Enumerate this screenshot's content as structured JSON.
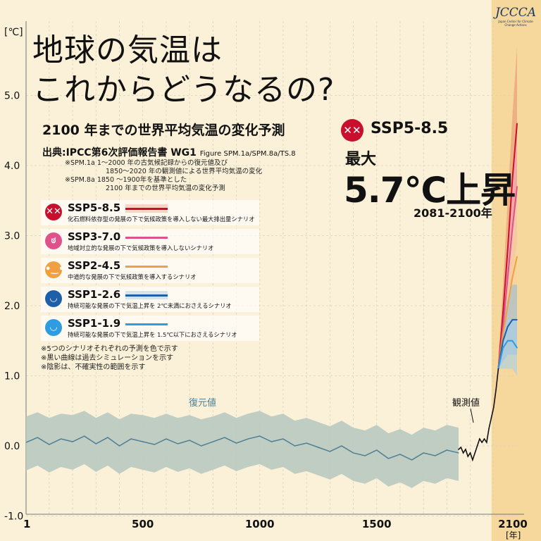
{
  "title_line1": "地球の気温は",
  "title_line2": "これからどうなるの?",
  "subtitle": "2100 年までの世界平均気温の変化予測",
  "source_label": "出典:IPCC第6次評価報告書 WG1",
  "source_figure": "Figure SPM.1a/SPM.8a/TS.8",
  "notes": [
    "※SPM.1a  1〜2000 年の古気候記録からの復元値及び",
    "1850〜2020 年の観測値による世界平均気温の変化",
    "※SPM.8a  1850 〜1900年を基準とした",
    "2100 年までの世界平均気温の変化予測"
  ],
  "legend": [
    {
      "name": "SSP5-8.5",
      "desc": "化石燃料依存型の発展の下で気候政策を導入しない最大排出量シナリオ",
      "face": "✕✕",
      "color": "#c8102e",
      "band": "#e8906e"
    },
    {
      "name": "SSP3-7.0",
      "desc": "地域対立的な発展の下で気候政策を導入しないシナリオ",
      "face": "ಠ",
      "color": "#e0508a",
      "band": "#f4a6c0"
    },
    {
      "name": "SSP2-4.5",
      "desc": "中道的な発展の下で気候政策を導入するシナリオ",
      "face": "•‿•",
      "color": "#f0a040",
      "band": "#f8d29a"
    },
    {
      "name": "SSP1-2.6",
      "desc": "持続可能な発展の下で気温上昇を 2℃未満におさえるシナリオ",
      "face": "◡",
      "color": "#1f5fa8",
      "band": "#8fb8df"
    },
    {
      "name": "SSP1-1.9",
      "desc": "持続可能な発展の下で気温上昇を 1.5℃以下におさえるシナリオ",
      "face": "◡",
      "color": "#2f9be0",
      "band": "#9fd0f0"
    }
  ],
  "footnotes": [
    "※5つのシナリオそれぞれの予測を色で示す",
    "※黒い曲線は過去シミュレーションを示す",
    "※陰影は、不確実性の範囲を示す"
  ],
  "highlight": {
    "scenario": "SSP5-8.5",
    "max_label": "最大",
    "value": "5.7℃上昇",
    "period": "2081-2100年"
  },
  "logo": {
    "name": "JCCCA",
    "sub": "Japan Center for Climate Change Actions"
  },
  "colors": {
    "background": "#fbf1d8",
    "projection_bg": "#f6d79c",
    "reconstruction_band": "#b9c9c0",
    "reconstruction_line": "#4e7f94",
    "observed": "#111111"
  },
  "chart_data": {
    "type": "line",
    "ylabel": "[℃]",
    "xlabel": "[年]",
    "xlim": [
      1,
      2100
    ],
    "ylim": [
      -1.0,
      6.0
    ],
    "yticks": [
      -1.0,
      0.0,
      1.0,
      2.0,
      3.0,
      4.0,
      5.0
    ],
    "ytick_labels": [
      "-1.0",
      "0.0",
      "1.0",
      "2.0",
      "3.0",
      "4.0",
      "5.0"
    ],
    "xticks": [
      1,
      500,
      1000,
      1500,
      2100
    ],
    "xtick_labels": [
      "1",
      "500",
      "1000",
      "1500",
      "2100"
    ],
    "annotations": {
      "reconstructed": "復元値",
      "observed": "観測値"
    },
    "reconstruction": {
      "name": "復元値",
      "x": [
        1,
        50,
        100,
        150,
        200,
        250,
        300,
        350,
        400,
        450,
        500,
        550,
        600,
        650,
        700,
        750,
        800,
        850,
        900,
        950,
        1000,
        1050,
        1100,
        1150,
        1200,
        1250,
        1300,
        1350,
        1400,
        1450,
        1500,
        1550,
        1600,
        1650,
        1700,
        1750,
        1800,
        1850
      ],
      "y": [
        0.05,
        0.12,
        0.02,
        0.1,
        0.06,
        0.14,
        0.03,
        0.12,
        0.0,
        0.1,
        0.06,
        0.02,
        0.1,
        0.03,
        0.08,
        0.0,
        0.06,
        0.12,
        0.04,
        0.1,
        0.14,
        0.06,
        0.1,
        0.0,
        0.04,
        -0.02,
        -0.08,
        0.0,
        -0.1,
        -0.14,
        -0.06,
        -0.18,
        -0.12,
        -0.2,
        -0.1,
        -0.14,
        -0.06,
        -0.1
      ],
      "lower": [
        -0.35,
        -0.28,
        -0.38,
        -0.3,
        -0.34,
        -0.26,
        -0.37,
        -0.28,
        -0.4,
        -0.3,
        -0.34,
        -0.38,
        -0.3,
        -0.37,
        -0.32,
        -0.4,
        -0.34,
        -0.28,
        -0.36,
        -0.3,
        -0.26,
        -0.34,
        -0.3,
        -0.4,
        -0.36,
        -0.42,
        -0.48,
        -0.4,
        -0.5,
        -0.54,
        -0.46,
        -0.58,
        -0.52,
        -0.6,
        -0.5,
        -0.54,
        -0.46,
        -0.5
      ],
      "upper": [
        0.42,
        0.48,
        0.4,
        0.46,
        0.44,
        0.5,
        0.4,
        0.48,
        0.38,
        0.46,
        0.44,
        0.4,
        0.46,
        0.4,
        0.44,
        0.38,
        0.42,
        0.48,
        0.4,
        0.46,
        0.5,
        0.42,
        0.46,
        0.36,
        0.4,
        0.34,
        0.28,
        0.36,
        0.26,
        0.22,
        0.3,
        0.18,
        0.24,
        0.16,
        0.26,
        0.22,
        0.3,
        0.26
      ]
    },
    "observed": {
      "name": "観測値",
      "x": [
        1850,
        1860,
        1870,
        1880,
        1890,
        1900,
        1910,
        1920,
        1930,
        1940,
        1950,
        1960,
        1970,
        1980,
        1990,
        2000,
        2010,
        2020
      ],
      "y": [
        -0.05,
        -0.02,
        -0.1,
        -0.05,
        -0.15,
        -0.1,
        -0.2,
        -0.1,
        0.0,
        0.1,
        0.05,
        0.1,
        0.05,
        0.25,
        0.4,
        0.55,
        0.8,
        1.1
      ]
    },
    "projection_start": 2015,
    "series": [
      {
        "name": "SSP5-8.5",
        "x": [
          2020,
          2040,
          2060,
          2080,
          2100
        ],
        "values": [
          1.1,
          1.9,
          2.8,
          3.8,
          4.6
        ],
        "lower": [
          1.1,
          1.6,
          2.3,
          3.1,
          3.6
        ],
        "upper": [
          1.2,
          2.3,
          3.5,
          4.7,
          5.7
        ]
      },
      {
        "name": "SSP3-7.0",
        "x": [
          2020,
          2040,
          2060,
          2080,
          2100
        ],
        "values": [
          1.1,
          1.7,
          2.4,
          3.1,
          3.7
        ],
        "lower": [
          1.1,
          1.4,
          1.9,
          2.5,
          2.9
        ],
        "upper": [
          1.2,
          2.0,
          2.9,
          3.8,
          4.6
        ]
      },
      {
        "name": "SSP2-4.5",
        "x": [
          2020,
          2040,
          2060,
          2080,
          2100
        ],
        "values": [
          1.1,
          1.6,
          2.0,
          2.4,
          2.7
        ],
        "lower": [
          1.1,
          1.3,
          1.6,
          1.9,
          2.1
        ],
        "upper": [
          1.2,
          1.9,
          2.5,
          3.0,
          3.5
        ]
      },
      {
        "name": "SSP1-2.6",
        "x": [
          2020,
          2040,
          2060,
          2080,
          2100
        ],
        "values": [
          1.1,
          1.5,
          1.7,
          1.8,
          1.8
        ],
        "lower": [
          1.1,
          1.2,
          1.3,
          1.3,
          1.3
        ],
        "upper": [
          1.2,
          1.8,
          2.1,
          2.3,
          2.3
        ]
      },
      {
        "name": "SSP1-1.9",
        "x": [
          2020,
          2040,
          2060,
          2080,
          2100
        ],
        "values": [
          1.1,
          1.4,
          1.5,
          1.5,
          1.4
        ],
        "lower": [
          1.1,
          1.1,
          1.1,
          1.1,
          1.0
        ],
        "upper": [
          1.2,
          1.6,
          1.8,
          1.8,
          1.8
        ]
      }
    ]
  }
}
